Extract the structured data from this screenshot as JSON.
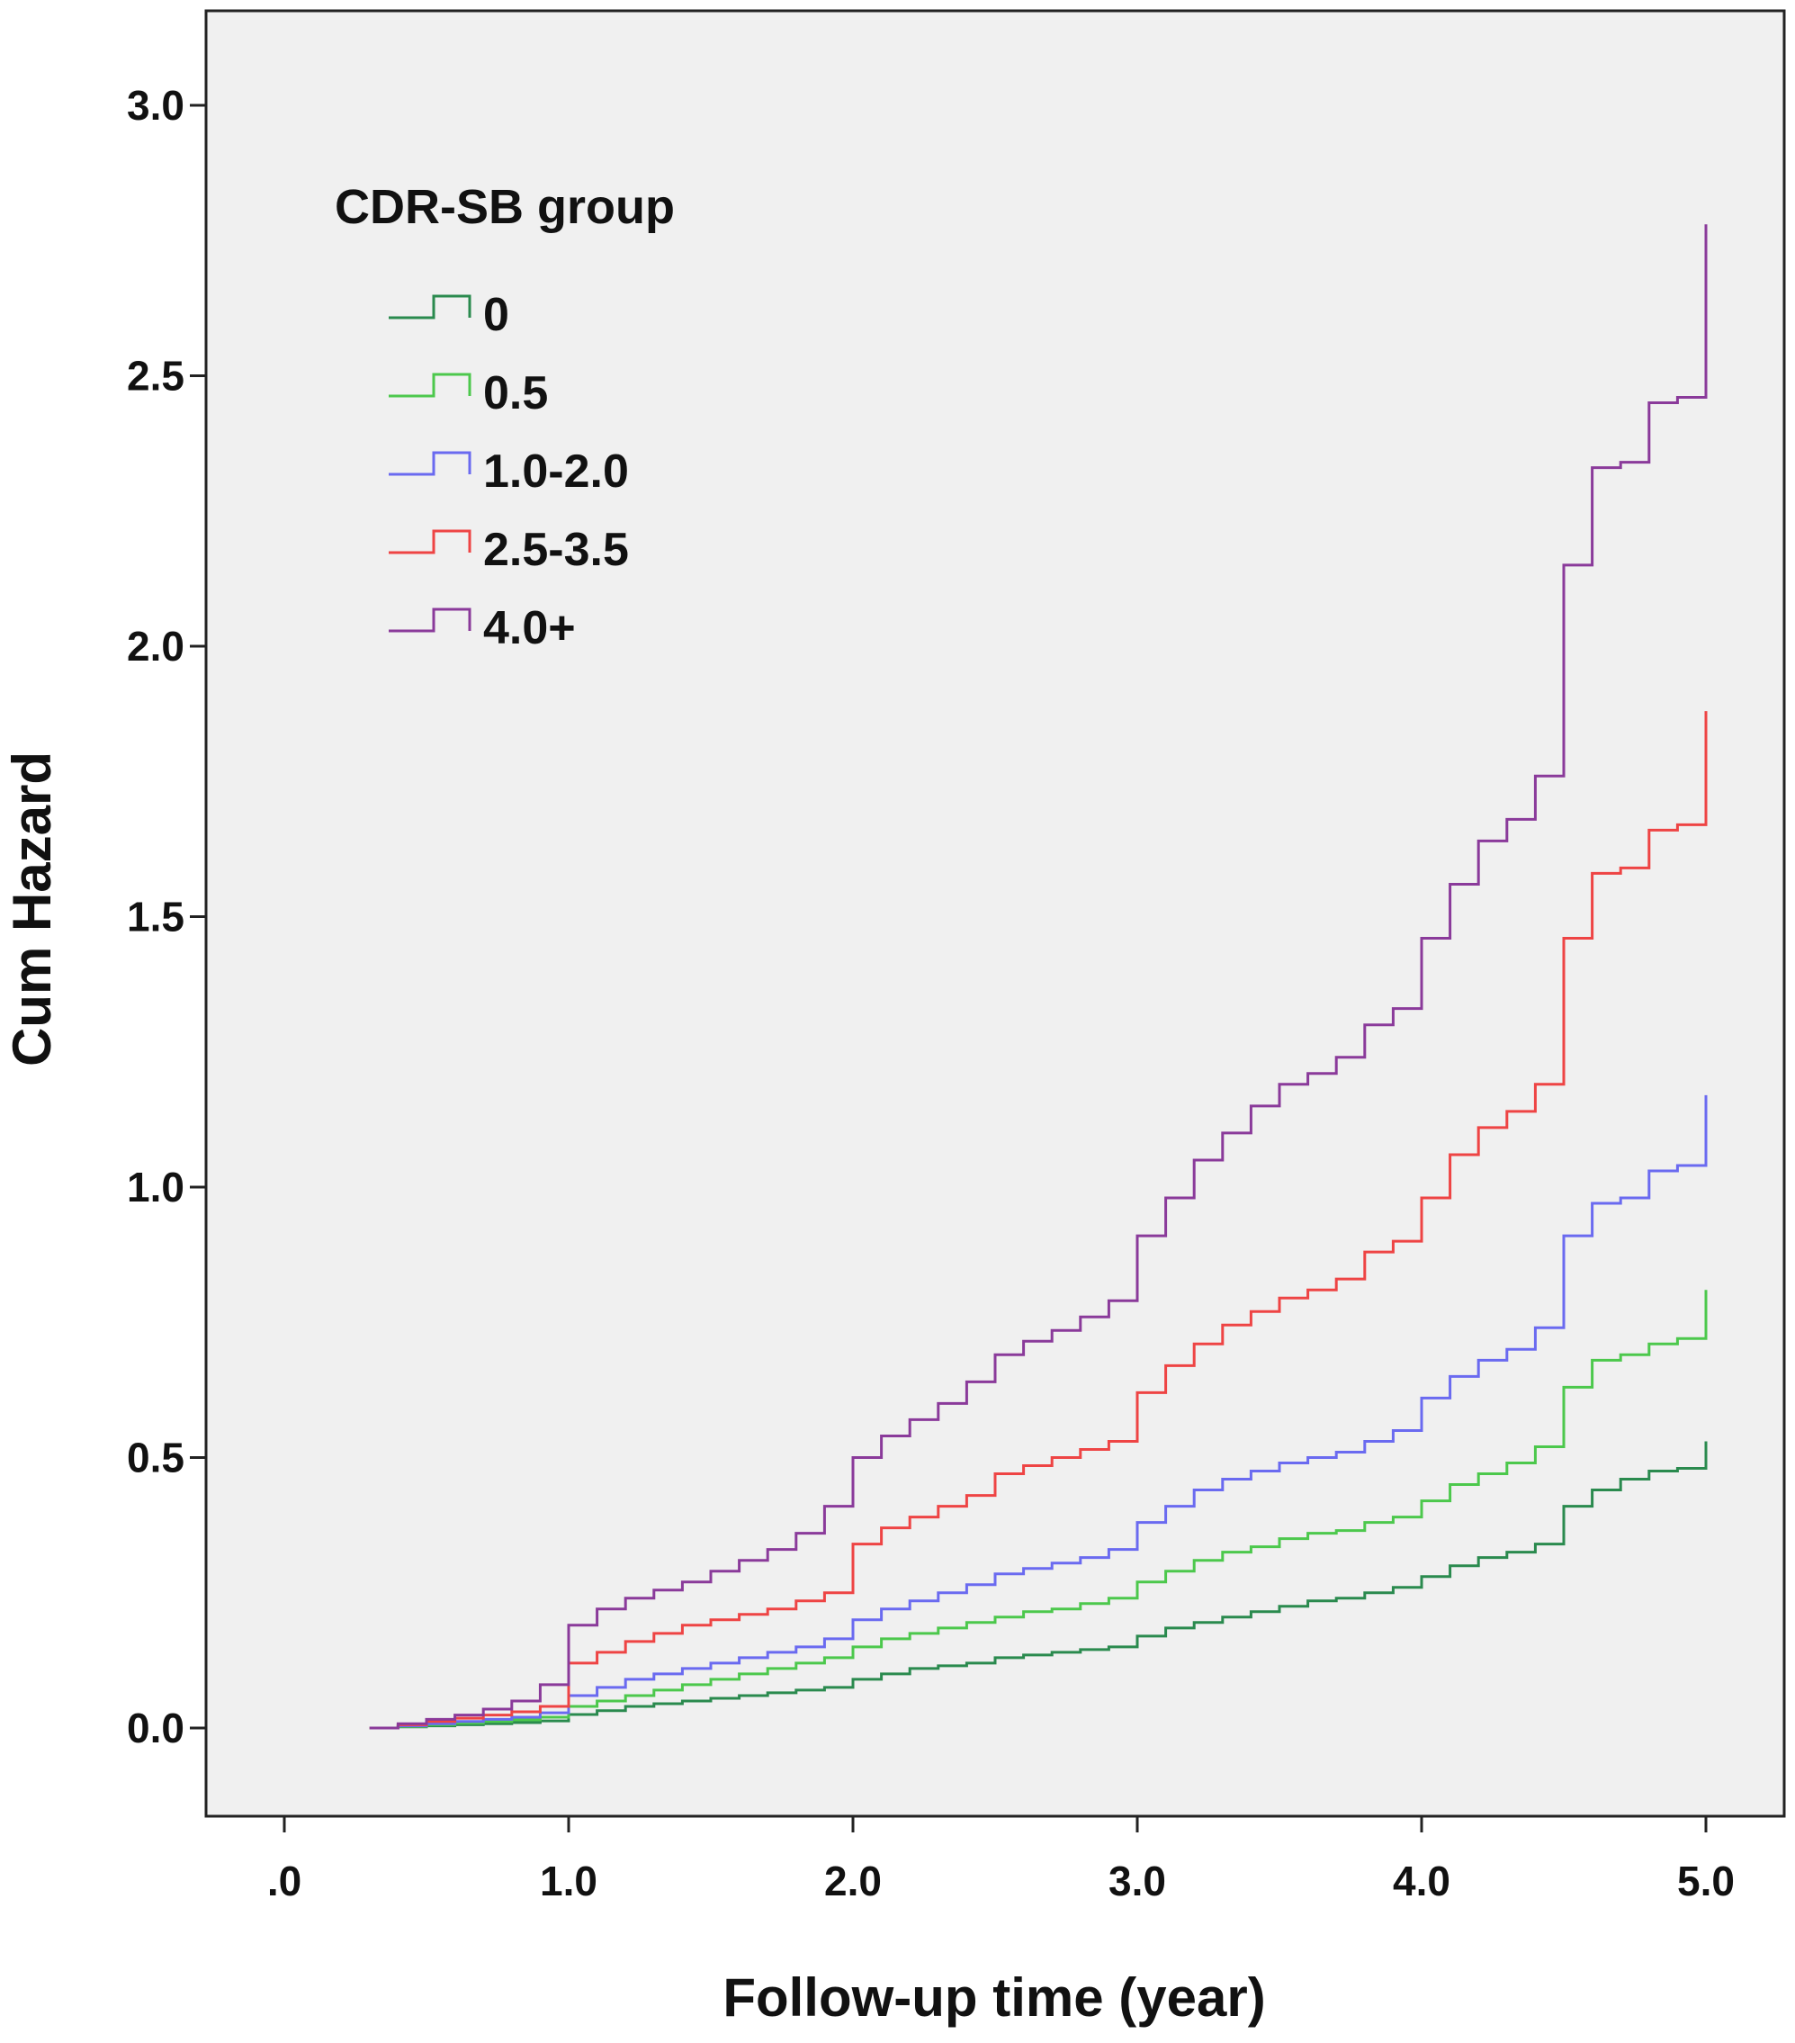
{
  "chart_data": {
    "type": "line",
    "style": "step",
    "xlabel": "Follow-up time (year)",
    "ylabel": "Cum Hazard",
    "xlim": [
      -0.1,
      5.25
    ],
    "ylim": [
      -0.15,
      3.17
    ],
    "xticks": [
      0,
      1,
      2,
      3,
      4,
      5
    ],
    "xtick_labels": [
      ".0",
      "1.0",
      "2.0",
      "3.0",
      "4.0",
      "5.0"
    ],
    "yticks": [
      0,
      0.5,
      1,
      1.5,
      2,
      2.5,
      3
    ],
    "ytick_labels": [
      "0.0",
      "0.5",
      "1.0",
      "1.5",
      "2.0",
      "2.5",
      "3.0"
    ],
    "grid": false,
    "background": "#f0f0f0",
    "legend": {
      "title": "CDR-SB group",
      "position": "top-left"
    },
    "series": [
      {
        "name": "0",
        "color": "#2a8a4e",
        "x": [
          0.3,
          0.4,
          0.5,
          0.6,
          0.7,
          0.8,
          0.9,
          1.0,
          1.1,
          1.2,
          1.3,
          1.4,
          1.5,
          1.6,
          1.7,
          1.8,
          1.9,
          2.0,
          2.1,
          2.2,
          2.3,
          2.4,
          2.5,
          2.6,
          2.7,
          2.8,
          2.9,
          3.0,
          3.1,
          3.2,
          3.3,
          3.4,
          3.5,
          3.6,
          3.7,
          3.8,
          3.9,
          4.0,
          4.1,
          4.2,
          4.3,
          4.4,
          4.5,
          4.6,
          4.7,
          4.8,
          4.9,
          5.0
        ],
        "y": [
          0,
          0.002,
          0.004,
          0.006,
          0.008,
          0.01,
          0.013,
          0.025,
          0.032,
          0.04,
          0.045,
          0.05,
          0.055,
          0.06,
          0.065,
          0.07,
          0.075,
          0.09,
          0.1,
          0.11,
          0.115,
          0.12,
          0.13,
          0.135,
          0.14,
          0.145,
          0.15,
          0.17,
          0.185,
          0.195,
          0.205,
          0.215,
          0.225,
          0.235,
          0.24,
          0.25,
          0.26,
          0.28,
          0.3,
          0.315,
          0.325,
          0.34,
          0.41,
          0.44,
          0.46,
          0.475,
          0.48,
          0.53
        ]
      },
      {
        "name": "0.5",
        "color": "#4cc84c",
        "x": [
          0.3,
          0.4,
          0.5,
          0.6,
          0.7,
          0.8,
          0.9,
          1.0,
          1.1,
          1.2,
          1.3,
          1.4,
          1.5,
          1.6,
          1.7,
          1.8,
          1.9,
          2.0,
          2.1,
          2.2,
          2.3,
          2.4,
          2.5,
          2.6,
          2.7,
          2.8,
          2.9,
          3.0,
          3.1,
          3.2,
          3.3,
          3.4,
          3.5,
          3.6,
          3.7,
          3.8,
          3.9,
          4.0,
          4.1,
          4.2,
          4.3,
          4.4,
          4.5,
          4.6,
          4.7,
          4.8,
          4.9,
          5.0
        ],
        "y": [
          0,
          0.003,
          0.006,
          0.009,
          0.012,
          0.015,
          0.02,
          0.04,
          0.05,
          0.06,
          0.07,
          0.08,
          0.09,
          0.1,
          0.11,
          0.12,
          0.13,
          0.15,
          0.165,
          0.175,
          0.185,
          0.195,
          0.205,
          0.215,
          0.22,
          0.23,
          0.24,
          0.27,
          0.29,
          0.31,
          0.325,
          0.335,
          0.35,
          0.36,
          0.365,
          0.38,
          0.39,
          0.42,
          0.45,
          0.47,
          0.49,
          0.52,
          0.63,
          0.68,
          0.69,
          0.71,
          0.72,
          0.81
        ]
      },
      {
        "name": "1.0-2.0",
        "color": "#6a6af0",
        "x": [
          0.3,
          0.4,
          0.5,
          0.6,
          0.7,
          0.8,
          0.9,
          1.0,
          1.1,
          1.2,
          1.3,
          1.4,
          1.5,
          1.6,
          1.7,
          1.8,
          1.9,
          2.0,
          2.1,
          2.2,
          2.3,
          2.4,
          2.5,
          2.6,
          2.7,
          2.8,
          2.9,
          3.0,
          3.1,
          3.2,
          3.3,
          3.4,
          3.5,
          3.6,
          3.7,
          3.8,
          3.9,
          4.0,
          4.1,
          4.2,
          4.3,
          4.4,
          4.5,
          4.6,
          4.7,
          4.8,
          4.9,
          5.0
        ],
        "y": [
          0,
          0.004,
          0.008,
          0.012,
          0.016,
          0.02,
          0.028,
          0.06,
          0.075,
          0.09,
          0.1,
          0.11,
          0.12,
          0.13,
          0.14,
          0.15,
          0.165,
          0.2,
          0.22,
          0.235,
          0.25,
          0.265,
          0.285,
          0.295,
          0.305,
          0.315,
          0.33,
          0.38,
          0.41,
          0.44,
          0.46,
          0.475,
          0.49,
          0.5,
          0.51,
          0.53,
          0.55,
          0.61,
          0.65,
          0.68,
          0.7,
          0.74,
          0.91,
          0.97,
          0.98,
          1.03,
          1.04,
          1.17
        ]
      },
      {
        "name": "2.5-3.5",
        "color": "#ee4444",
        "x": [
          0.3,
          0.4,
          0.5,
          0.6,
          0.7,
          0.8,
          0.9,
          1.0,
          1.1,
          1.2,
          1.3,
          1.4,
          1.5,
          1.6,
          1.7,
          1.8,
          1.9,
          2.0,
          2.1,
          2.2,
          2.3,
          2.4,
          2.5,
          2.6,
          2.7,
          2.8,
          2.9,
          3.0,
          3.1,
          3.2,
          3.3,
          3.4,
          3.5,
          3.6,
          3.7,
          3.8,
          3.9,
          4.0,
          4.1,
          4.2,
          4.3,
          4.4,
          4.5,
          4.6,
          4.7,
          4.8,
          4.9,
          5.0
        ],
        "y": [
          0,
          0.006,
          0.012,
          0.018,
          0.024,
          0.03,
          0.04,
          0.12,
          0.14,
          0.16,
          0.175,
          0.19,
          0.2,
          0.21,
          0.22,
          0.235,
          0.25,
          0.34,
          0.37,
          0.39,
          0.41,
          0.43,
          0.47,
          0.485,
          0.5,
          0.515,
          0.53,
          0.62,
          0.67,
          0.71,
          0.745,
          0.77,
          0.795,
          0.81,
          0.83,
          0.88,
          0.9,
          0.98,
          1.06,
          1.11,
          1.14,
          1.19,
          1.46,
          1.58,
          1.59,
          1.66,
          1.67,
          1.88
        ]
      },
      {
        "name": "4.0+",
        "color": "#8a3a9a",
        "x": [
          0.3,
          0.4,
          0.5,
          0.6,
          0.7,
          0.8,
          0.9,
          1.0,
          1.1,
          1.2,
          1.3,
          1.4,
          1.5,
          1.6,
          1.7,
          1.8,
          1.9,
          2.0,
          2.1,
          2.2,
          2.3,
          2.4,
          2.5,
          2.6,
          2.7,
          2.8,
          2.9,
          3.0,
          3.1,
          3.2,
          3.3,
          3.4,
          3.5,
          3.6,
          3.7,
          3.8,
          3.9,
          4.0,
          4.1,
          4.2,
          4.3,
          4.4,
          4.5,
          4.6,
          4.7,
          4.8,
          4.9,
          5.0
        ],
        "y": [
          0,
          0.008,
          0.016,
          0.024,
          0.035,
          0.05,
          0.08,
          0.19,
          0.22,
          0.24,
          0.255,
          0.27,
          0.29,
          0.31,
          0.33,
          0.36,
          0.41,
          0.5,
          0.54,
          0.57,
          0.6,
          0.64,
          0.69,
          0.715,
          0.735,
          0.76,
          0.79,
          0.91,
          0.98,
          1.05,
          1.1,
          1.15,
          1.19,
          1.21,
          1.24,
          1.3,
          1.33,
          1.46,
          1.56,
          1.64,
          1.68,
          1.76,
          2.15,
          2.33,
          2.34,
          2.45,
          2.46,
          2.78
        ]
      }
    ]
  }
}
